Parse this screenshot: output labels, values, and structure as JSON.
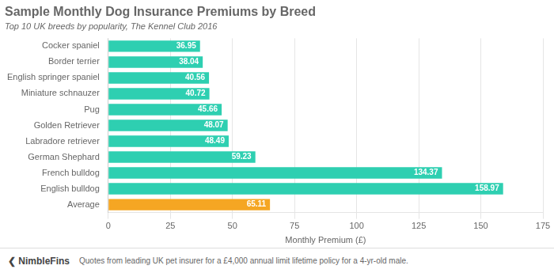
{
  "chart_data": {
    "type": "bar",
    "orientation": "horizontal",
    "title": "Sample Monthly Dog Insurance Premiums by Breed",
    "subtitle": "Top 10 UK breeds by popularity, The Kennel Club 2016",
    "xlabel": "Monthly Premium (£)",
    "annotations": [
      "❮  NimbleFins",
      "Quotes from leading UK pet insurer for a £4,000 annual limit lifetime policy for a 4-yr-old male."
    ],
    "categories": [
      "Cocker spaniel",
      "Border terrier",
      "English springer spaniel",
      "Miniature schnauzer",
      "Pug",
      "Golden Retriever",
      "Labradore retriever",
      "German Shephard",
      "French bulldog",
      "English bulldog",
      "Average"
    ],
    "values": [
      36.95,
      38.04,
      40.56,
      40.72,
      45.66,
      48.07,
      48.49,
      59.23,
      134.37,
      158.97,
      65.11
    ],
    "colors": [
      "#2ecfb1",
      "#2ecfb1",
      "#2ecfb1",
      "#2ecfb1",
      "#2ecfb1",
      "#2ecfb1",
      "#2ecfb1",
      "#2ecfb1",
      "#2ecfb1",
      "#2ecfb1",
      "#f5a623"
    ],
    "xlim": [
      0,
      175
    ],
    "xticks": [
      0,
      25,
      50,
      75,
      100,
      125,
      150,
      175
    ],
    "grid": true,
    "data_labels": true
  }
}
